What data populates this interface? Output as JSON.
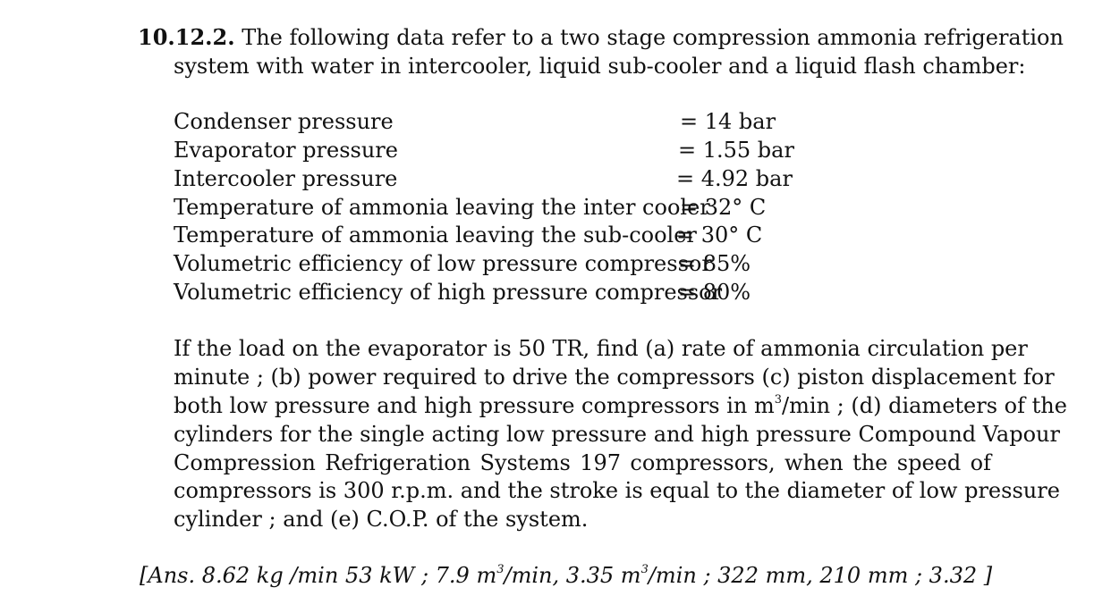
{
  "problem": {
    "number": "10.12.2.",
    "intro_line1": "The following data refer to a two stage compression ammonia refrigeration",
    "intro_line2": "system with water in intercooler, liquid sub-cooler and a liquid flash chamber:"
  },
  "data_items": [
    {
      "label": "Condenser pressure",
      "value": "= 14 bar"
    },
    {
      "label": "Evaporator pressure",
      "value": "= 1.55 bar"
    },
    {
      "label": "Intercooler pressure",
      "value": "= 4.92 bar"
    },
    {
      "label": "Temperature of ammonia leaving the inter cooler",
      "value": "= 32° C"
    },
    {
      "label": "Temperature of ammonia leaving the sub-cooler",
      "value": "= 30° C"
    },
    {
      "label": "Volumetric efficiency of low pressure compressor",
      "value": "=  85%"
    },
    {
      "label": "Volumetric efficiency of high pressure compressor",
      "value": "=  80%"
    }
  ],
  "question": {
    "line1": "If the load on the evaporator is 50 TR, find (a) rate of ammonia circulation per",
    "line2": "minute ; (b) power required to drive the compressors (c) piston displacement for",
    "line3_pre": "both low pressure and high pressure compressors in m",
    "line3_sup": "3",
    "line3_post": "/min ; (d) diameters of the",
    "line4": "cylinders for the single acting low pressure and high pressure Compound Vapour",
    "line5": "Compression Refrigeration Systems 197 compressors, when the speed of",
    "line6": "compressors is 300 r.p.m. and the stroke is equal to the diameter of low pressure",
    "line7": "cylinder ; and (e) C.O.P. of the system."
  },
  "answer": {
    "part1": "[Ans. 8.62 kg /min 53 kW ; 7.9 m",
    "sup1": "3",
    "part2": "/min, 3.35 m",
    "sup2": "3",
    "part3": "/min ; 322 mm, 210 mm ; 3.32 ]"
  }
}
